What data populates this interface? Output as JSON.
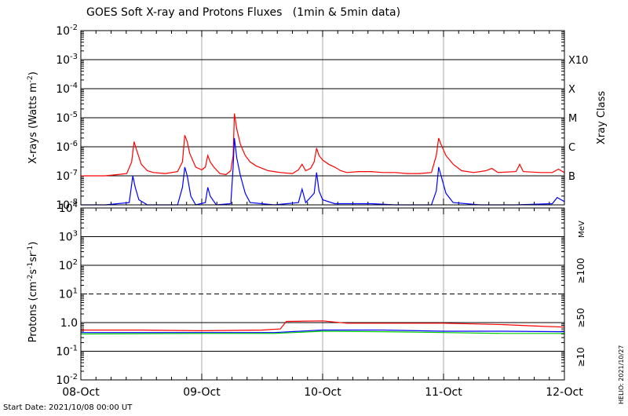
{
  "title": "GOES Soft X-ray and Protons Fluxes   (1min & 5min data)",
  "start_date": "Start Date: 2021/10/08 00:00 UT",
  "helio_stamp": "HELIO: 2021/10/27",
  "colors": {
    "xray_long": "#ff0000",
    "xray_short": "#0000ff",
    "p10": "#ff0000",
    "p50": "#0000ff",
    "p100": "#00d000",
    "grid": "#000000",
    "day_line": "#aaaaaa"
  },
  "chart_data": [
    {
      "type": "line",
      "name": "xray",
      "ylabel": "X-rays (Watts m",
      "ylabel_sup": "-2",
      "ylabel_close": ")",
      "y_scale": "log",
      "ylim_exp": [
        -8,
        -2
      ],
      "tick_base": "10",
      "tick_exponents": [
        "-8",
        "-7",
        "-6",
        "-5",
        "-4",
        "-3",
        "-2"
      ],
      "right_axis_title": "Xray Class",
      "classes": [
        {
          "label": "B",
          "exp": -7
        },
        {
          "label": "C",
          "exp": -6
        },
        {
          "label": "M",
          "exp": -5
        },
        {
          "label": "X",
          "exp": -4
        },
        {
          "label": "X10",
          "exp": -3
        }
      ],
      "xlim_days": [
        0,
        4
      ],
      "series": [
        {
          "key": "long",
          "color": "#ff0000",
          "points": [
            [
              0.0,
              1e-07
            ],
            [
              0.1,
              1e-07
            ],
            [
              0.2,
              1e-07
            ],
            [
              0.3,
              1.1e-07
            ],
            [
              0.38,
              1.2e-07
            ],
            [
              0.42,
              3e-07
            ],
            [
              0.44,
              1.5e-06
            ],
            [
              0.46,
              8e-07
            ],
            [
              0.5,
              2.5e-07
            ],
            [
              0.55,
              1.5e-07
            ],
            [
              0.6,
              1.3e-07
            ],
            [
              0.7,
              1.2e-07
            ],
            [
              0.8,
              1.4e-07
            ],
            [
              0.84,
              3e-07
            ],
            [
              0.86,
              2.5e-06
            ],
            [
              0.88,
              1.5e-06
            ],
            [
              0.9,
              6e-07
            ],
            [
              0.95,
              2e-07
            ],
            [
              1.0,
              1.6e-07
            ],
            [
              1.03,
              2e-07
            ],
            [
              1.05,
              5e-07
            ],
            [
              1.07,
              3e-07
            ],
            [
              1.1,
              2e-07
            ],
            [
              1.15,
              1.2e-07
            ],
            [
              1.2,
              1.1e-07
            ],
            [
              1.24,
              1.5e-07
            ],
            [
              1.26,
              5e-07
            ],
            [
              1.27,
              1.4e-05
            ],
            [
              1.29,
              4e-06
            ],
            [
              1.32,
              1.2e-06
            ],
            [
              1.36,
              5e-07
            ],
            [
              1.4,
              3e-07
            ],
            [
              1.45,
              2.2e-07
            ],
            [
              1.5,
              1.8e-07
            ],
            [
              1.55,
              1.5e-07
            ],
            [
              1.6,
              1.4e-07
            ],
            [
              1.65,
              1.3e-07
            ],
            [
              1.75,
              1.2e-07
            ],
            [
              1.8,
              1.6e-07
            ],
            [
              1.83,
              2.5e-07
            ],
            [
              1.86,
              1.5e-07
            ],
            [
              1.9,
              1.8e-07
            ],
            [
              1.93,
              3e-07
            ],
            [
              1.95,
              9e-07
            ],
            [
              1.97,
              5e-07
            ],
            [
              2.0,
              3.5e-07
            ],
            [
              2.05,
              2.5e-07
            ],
            [
              2.1,
              2e-07
            ],
            [
              2.15,
              1.5e-07
            ],
            [
              2.2,
              1.3e-07
            ],
            [
              2.3,
              1.4e-07
            ],
            [
              2.4,
              1.4e-07
            ],
            [
              2.5,
              1.3e-07
            ],
            [
              2.6,
              1.3e-07
            ],
            [
              2.7,
              1.2e-07
            ],
            [
              2.8,
              1.2e-07
            ],
            [
              2.9,
              1.3e-07
            ],
            [
              2.94,
              5e-07
            ],
            [
              2.96,
              2e-06
            ],
            [
              2.98,
              1.2e-06
            ],
            [
              3.02,
              5e-07
            ],
            [
              3.08,
              2.5e-07
            ],
            [
              3.15,
              1.5e-07
            ],
            [
              3.25,
              1.3e-07
            ],
            [
              3.35,
              1.5e-07
            ],
            [
              3.4,
              1.8e-07
            ],
            [
              3.45,
              1.3e-07
            ],
            [
              3.6,
              1.4e-07
            ],
            [
              3.63,
              2.5e-07
            ],
            [
              3.66,
              1.4e-07
            ],
            [
              3.8,
              1.3e-07
            ],
            [
              3.9,
              1.3e-07
            ],
            [
              3.95,
              1.7e-07
            ],
            [
              4.0,
              1.3e-07
            ]
          ]
        },
        {
          "key": "short",
          "color": "#0000ff",
          "points": [
            [
              0.0,
              1e-08
            ],
            [
              0.2,
              1e-08
            ],
            [
              0.4,
              1.2e-08
            ],
            [
              0.43,
              1e-07
            ],
            [
              0.45,
              4e-08
            ],
            [
              0.48,
              1.5e-08
            ],
            [
              0.55,
              1e-08
            ],
            [
              0.8,
              1e-08
            ],
            [
              0.84,
              4e-08
            ],
            [
              0.86,
              2e-07
            ],
            [
              0.88,
              1e-07
            ],
            [
              0.91,
              2e-08
            ],
            [
              0.95,
              1e-08
            ],
            [
              1.03,
              1.2e-08
            ],
            [
              1.05,
              4e-08
            ],
            [
              1.07,
              2e-08
            ],
            [
              1.12,
              1e-08
            ],
            [
              1.24,
              1.1e-08
            ],
            [
              1.26,
              2e-07
            ],
            [
              1.27,
              2e-06
            ],
            [
              1.29,
              4e-07
            ],
            [
              1.32,
              1e-07
            ],
            [
              1.36,
              2.5e-08
            ],
            [
              1.4,
              1.2e-08
            ],
            [
              1.6,
              1e-08
            ],
            [
              1.8,
              1.2e-08
            ],
            [
              1.83,
              3.5e-08
            ],
            [
              1.86,
              1.2e-08
            ],
            [
              1.93,
              2.5e-08
            ],
            [
              1.95,
              1.3e-07
            ],
            [
              1.97,
              3e-08
            ],
            [
              2.0,
              1.5e-08
            ],
            [
              2.1,
              1.1e-08
            ],
            [
              2.4,
              1.1e-08
            ],
            [
              2.6,
              1e-08
            ],
            [
              2.9,
              1e-08
            ],
            [
              2.94,
              3e-08
            ],
            [
              2.96,
              2e-07
            ],
            [
              2.98,
              1e-07
            ],
            [
              3.02,
              2.5e-08
            ],
            [
              3.08,
              1.2e-08
            ],
            [
              3.3,
              1e-08
            ],
            [
              3.6,
              1e-08
            ],
            [
              3.9,
              1.1e-08
            ],
            [
              3.94,
              1.8e-08
            ],
            [
              4.0,
              1.3e-08
            ]
          ]
        }
      ]
    },
    {
      "type": "line",
      "name": "protons",
      "ylabel": "Protons (cm",
      "ylabel_parts": [
        "Protons (cm",
        "-2",
        "s",
        "-1",
        "sr",
        "-1",
        ")"
      ],
      "y_scale": "log",
      "ylim_exp": [
        -2,
        4
      ],
      "tick_base": "10",
      "tick_labels": [
        {
          "exp": -2,
          "base": "10",
          "sup": "-2"
        },
        {
          "exp": -1,
          "base": "10",
          "sup": "-1"
        },
        {
          "exp": 0,
          "base": "10",
          "sup": "0"
        },
        {
          "exp": 1,
          "base": "10",
          "sup": "1"
        },
        {
          "exp": 2,
          "base": "10",
          "sup": "2"
        },
        {
          "exp": 3,
          "base": "10",
          "sup": "3"
        },
        {
          "exp": 4,
          "base": "10",
          "sup": "4"
        }
      ],
      "tick_label_overrides": [
        "1.0"
      ],
      "threshold_exp": 1,
      "energy_unit": "MeV",
      "energy_labels": [
        {
          "label": "≥100",
          "color": "#00d000"
        },
        {
          "label": "≥50",
          "color": "#0000ff"
        },
        {
          "label": "≥10",
          "color": "#ff0000"
        }
      ],
      "xlim_days": [
        0,
        4
      ],
      "series": [
        {
          "key": "p10",
          "color": "#ff0000",
          "points": [
            [
              0.0,
              0.55
            ],
            [
              0.5,
              0.55
            ],
            [
              1.0,
              0.52
            ],
            [
              1.5,
              0.55
            ],
            [
              1.65,
              0.6
            ],
            [
              1.7,
              1.1
            ],
            [
              2.0,
              1.15
            ],
            [
              2.2,
              0.95
            ],
            [
              2.5,
              0.95
            ],
            [
              3.0,
              0.95
            ],
            [
              3.5,
              0.85
            ],
            [
              3.8,
              0.75
            ],
            [
              4.0,
              0.7
            ]
          ]
        },
        {
          "key": "p50",
          "color": "#0000ff",
          "points": [
            [
              0.0,
              0.45
            ],
            [
              1.0,
              0.45
            ],
            [
              1.6,
              0.45
            ],
            [
              2.0,
              0.55
            ],
            [
              2.5,
              0.55
            ],
            [
              3.0,
              0.5
            ],
            [
              3.5,
              0.5
            ],
            [
              4.0,
              0.48
            ]
          ]
        },
        {
          "key": "p100",
          "color": "#00d000",
          "points": [
            [
              0.0,
              0.4
            ],
            [
              1.0,
              0.42
            ],
            [
              1.6,
              0.42
            ],
            [
              2.0,
              0.5
            ],
            [
              2.5,
              0.48
            ],
            [
              3.0,
              0.45
            ],
            [
              3.5,
              0.42
            ],
            [
              4.0,
              0.42
            ]
          ]
        }
      ]
    }
  ],
  "x_ticks": [
    "08-Oct",
    "09-Oct",
    "10-Oct",
    "11-Oct",
    "12-Oct"
  ]
}
